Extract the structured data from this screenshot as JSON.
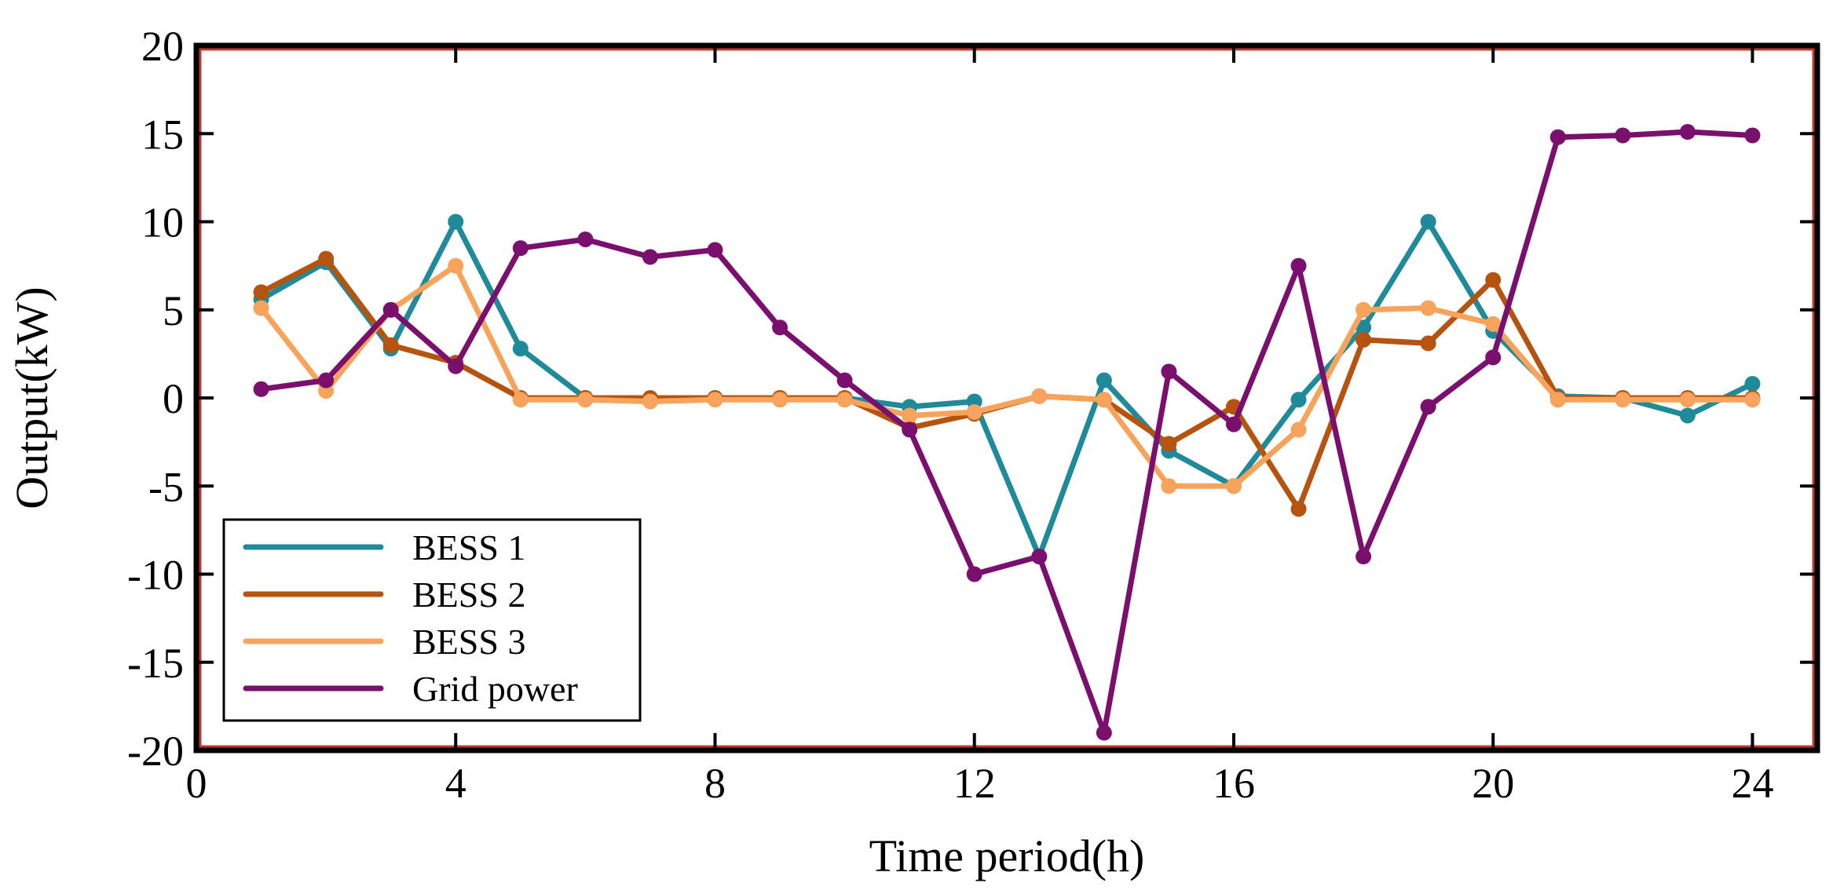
{
  "chart_data": {
    "type": "line",
    "xlabel": "Time period(h)",
    "ylabel": "Output(kW)",
    "xlim": [
      0,
      25
    ],
    "ylim": [
      -20,
      20
    ],
    "xticks": [
      0,
      4,
      8,
      12,
      16,
      20,
      24
    ],
    "yticks": [
      -20,
      -15,
      -10,
      -5,
      0,
      5,
      10,
      15,
      20
    ],
    "grid": false,
    "legend_position": "bottom-left",
    "frame_color": "#000000",
    "inner_frame_color": "#c0392b",
    "x": [
      1,
      2,
      3,
      4,
      5,
      6,
      7,
      8,
      9,
      10,
      11,
      12,
      13,
      14,
      15,
      16,
      17,
      18,
      19,
      20,
      21,
      22,
      23,
      24
    ],
    "series": [
      {
        "name": "BESS 1",
        "color": "#1f8a9a",
        "values": [
          5.6,
          7.7,
          2.8,
          10.0,
          2.8,
          0.0,
          -0.1,
          0.0,
          0.0,
          0.0,
          -0.5,
          -0.2,
          -9.0,
          1.0,
          -3.0,
          -5.0,
          -0.1,
          4.0,
          10.0,
          3.8,
          0.1,
          0.0,
          -1.0,
          0.8
        ]
      },
      {
        "name": "BESS 2",
        "color": "#b5530f",
        "values": [
          6.0,
          7.9,
          3.0,
          2.0,
          0.0,
          0.0,
          0.0,
          0.0,
          0.0,
          0.0,
          -1.7,
          -0.9,
          0.1,
          -0.1,
          -2.6,
          -0.5,
          -6.3,
          3.3,
          3.1,
          6.7,
          0.0,
          0.0,
          0.0,
          0.0
        ]
      },
      {
        "name": "BESS 3",
        "color": "#f7a35c",
        "values": [
          5.1,
          0.4,
          5.0,
          7.5,
          -0.1,
          -0.1,
          -0.2,
          -0.1,
          -0.1,
          -0.1,
          -1.0,
          -0.8,
          0.1,
          -0.1,
          -5.0,
          -5.0,
          -1.8,
          5.0,
          5.1,
          4.2,
          -0.1,
          -0.1,
          -0.1,
          -0.1
        ]
      },
      {
        "name": "Grid power",
        "color": "#7b0f6e",
        "values": [
          0.5,
          1.0,
          5.0,
          1.8,
          8.5,
          9.0,
          8.0,
          8.4,
          4.0,
          1.0,
          -1.8,
          -10.0,
          -9.0,
          -19.0,
          1.5,
          -1.5,
          7.5,
          -9.0,
          -0.5,
          2.3,
          14.8,
          14.9,
          15.1,
          14.9
        ]
      }
    ]
  }
}
